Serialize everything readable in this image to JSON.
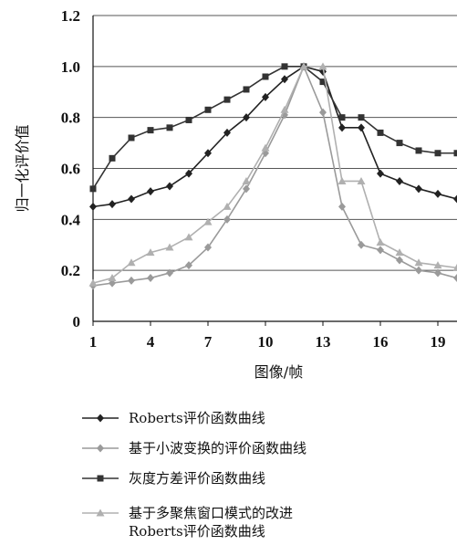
{
  "chart_data": {
    "type": "line",
    "xlabel": "图像/帧",
    "ylabel": "归一化评价值",
    "xlim": [
      1,
      20
    ],
    "ylim": [
      0,
      1.2
    ],
    "x_ticks": [
      "1",
      "4",
      "7",
      "10",
      "13",
      "16",
      "19"
    ],
    "y_ticks": [
      "0",
      "0.2",
      "0.4",
      "0.6",
      "0.8",
      "1.0",
      "1.2"
    ],
    "grid": "horizontal",
    "legend_position": "bottom",
    "x": [
      1,
      2,
      3,
      4,
      5,
      6,
      7,
      8,
      9,
      10,
      11,
      12,
      13,
      14,
      15,
      16,
      17,
      18,
      19,
      20
    ],
    "series": [
      {
        "name": "Roberts评价函数曲线",
        "color": "#222222",
        "marker": "diamond",
        "values": [
          0.45,
          0.46,
          0.48,
          0.51,
          0.53,
          0.58,
          0.66,
          0.74,
          0.8,
          0.88,
          0.95,
          1.0,
          0.98,
          0.76,
          0.76,
          0.58,
          0.55,
          0.52,
          0.5,
          0.48
        ]
      },
      {
        "name": "基于小波变换的评价函数曲线",
        "color": "#9a9a9a",
        "marker": "diamond",
        "values": [
          0.14,
          0.15,
          0.16,
          0.17,
          0.19,
          0.22,
          0.29,
          0.4,
          0.52,
          0.66,
          0.81,
          1.0,
          0.82,
          0.45,
          0.3,
          0.28,
          0.24,
          0.2,
          0.19,
          0.17
        ]
      },
      {
        "name": "灰度方差评价函数曲线",
        "color": "#333333",
        "marker": "square",
        "values": [
          0.52,
          0.64,
          0.72,
          0.75,
          0.76,
          0.79,
          0.83,
          0.87,
          0.91,
          0.96,
          1.0,
          1.0,
          0.94,
          0.8,
          0.8,
          0.74,
          0.7,
          0.67,
          0.66,
          0.66
        ]
      },
      {
        "name": "基于多聚焦窗口模式的改进 Roberts评价函数曲线",
        "label_lines": [
          "基于多聚焦窗口模式的改进",
          "Roberts评价函数曲线"
        ],
        "color": "#b0b0b0",
        "marker": "triangle",
        "values": [
          0.15,
          0.17,
          0.23,
          0.27,
          0.29,
          0.33,
          0.39,
          0.45,
          0.55,
          0.68,
          0.83,
          1.0,
          1.0,
          0.55,
          0.55,
          0.31,
          0.27,
          0.23,
          0.22,
          0.21
        ]
      }
    ]
  }
}
